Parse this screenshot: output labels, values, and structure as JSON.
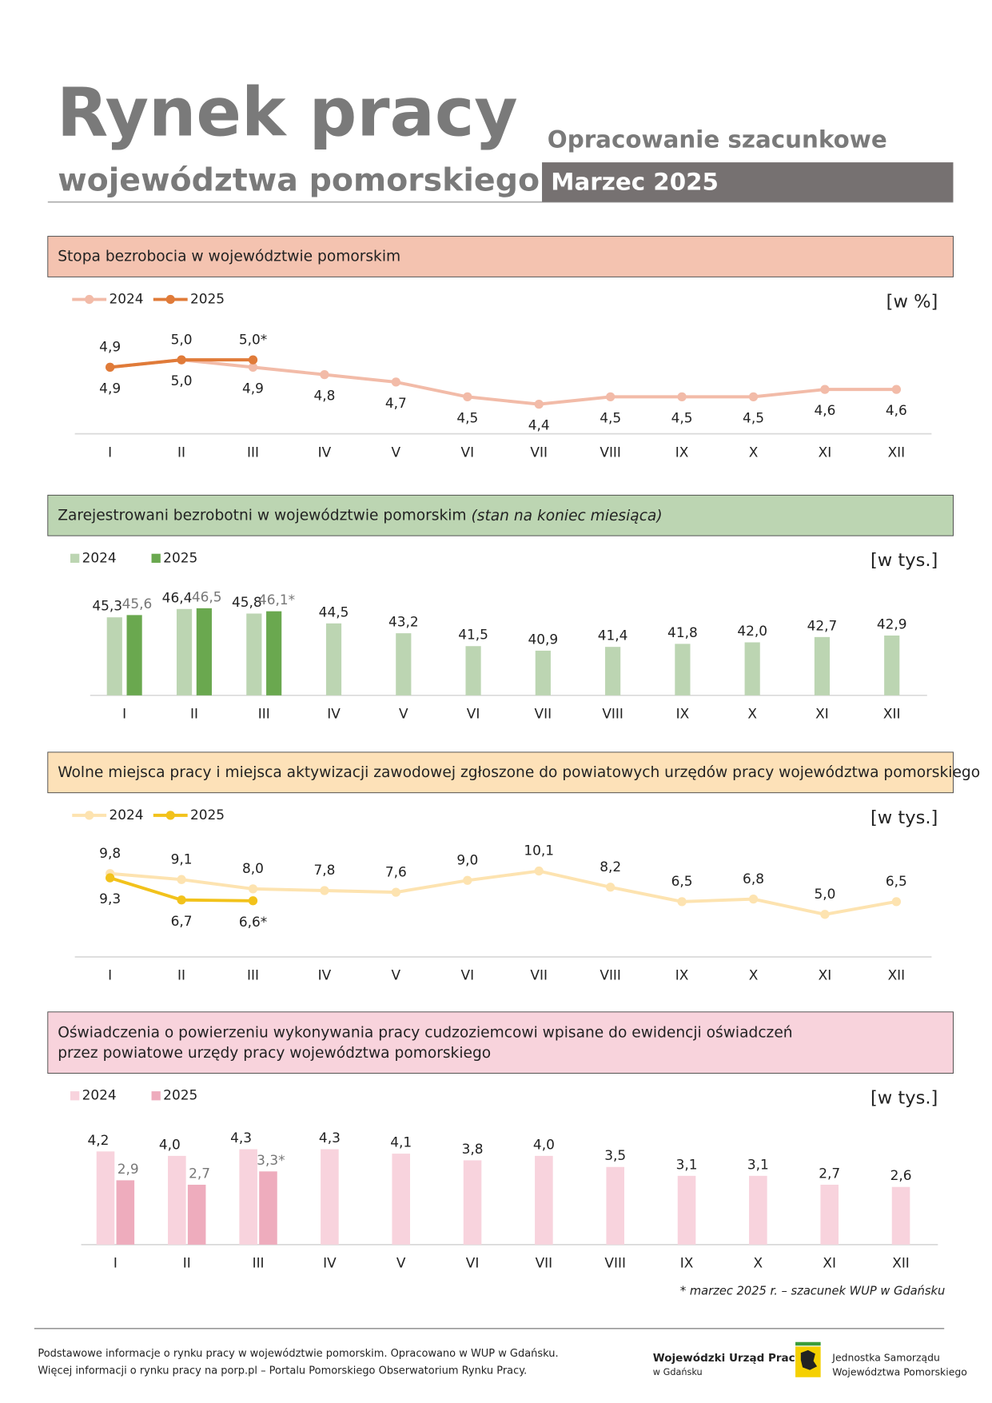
{
  "header": {
    "title": "Rynek pracy",
    "subtitle": "województwa pomorskiego",
    "note": "Opracowanie szacunkowe",
    "period": "Marzec 2025"
  },
  "chart_data": [
    {
      "type": "line",
      "title": "Stopa bezrobocia w województwie pomorskim",
      "unit": "[w %]",
      "categories": [
        "I",
        "II",
        "III",
        "IV",
        "V",
        "VI",
        "VII",
        "VIII",
        "IX",
        "X",
        "XI",
        "XII"
      ],
      "series": [
        {
          "name": "2024",
          "color": "#f2bba8",
          "values": [
            4.9,
            5.0,
            4.9,
            4.8,
            4.7,
            4.5,
            4.4,
            4.5,
            4.5,
            4.5,
            4.6,
            4.6
          ],
          "value_labels": [
            "4,9",
            "5,0",
            "4,9",
            "4,8",
            "4,7",
            "4,5",
            "4,4",
            "4,5",
            "4,5",
            "4,5",
            "4,6",
            "4,6"
          ]
        },
        {
          "name": "2025",
          "color": "#e07b39",
          "values": [
            4.9,
            5.0,
            5.0,
            null,
            null,
            null,
            null,
            null,
            null,
            null,
            null,
            null
          ],
          "value_labels": [
            "4,9",
            "5,0",
            "5,0*",
            null,
            null,
            null,
            null,
            null,
            null,
            null,
            null,
            null
          ]
        }
      ],
      "ylim": [
        4,
        5.5
      ]
    },
    {
      "type": "bar",
      "title": "Zarejestrowani bezrobotni w województwie pomorskim",
      "title_note": "(stan na koniec miesiąca)",
      "unit": "[w tys.]",
      "categories": [
        "I",
        "II",
        "III",
        "IV",
        "V",
        "VI",
        "VII",
        "VIII",
        "IX",
        "X",
        "XI",
        "XII"
      ],
      "series": [
        {
          "name": "2024",
          "color": "#bcd5b2",
          "values": [
            45.3,
            46.4,
            45.8,
            44.5,
            43.2,
            41.5,
            40.9,
            41.4,
            41.8,
            42.0,
            42.7,
            42.9
          ],
          "value_labels": [
            "45,3",
            "46,4",
            "45,8",
            "44,5",
            "43,2",
            "41,5",
            "40,9",
            "41,4",
            "41,8",
            "42,0",
            "42,7",
            "42,9"
          ]
        },
        {
          "name": "2025",
          "color": "#6aa84f",
          "values": [
            45.6,
            46.5,
            46.1,
            null,
            null,
            null,
            null,
            null,
            null,
            null,
            null,
            null
          ],
          "value_labels": [
            "45,6",
            "46,5",
            "46,1*",
            null,
            null,
            null,
            null,
            null,
            null,
            null,
            null,
            null
          ]
        }
      ],
      "ylim": [
        35,
        50
      ]
    },
    {
      "type": "line",
      "title": "Wolne miejsca pracy i miejsca aktywizacji zawodowej zgłoszone do powiatowych urzędów pracy województwa pomorskiego",
      "unit": "[w tys.]",
      "categories": [
        "I",
        "II",
        "III",
        "IV",
        "V",
        "VI",
        "VII",
        "VIII",
        "IX",
        "X",
        "XI",
        "XII"
      ],
      "series": [
        {
          "name": "2024",
          "color": "#fde3b0",
          "values": [
            9.8,
            9.1,
            8.0,
            7.8,
            7.6,
            9.0,
            10.1,
            8.2,
            6.5,
            6.8,
            5.0,
            6.5
          ],
          "value_labels": [
            "9,8",
            "9,1",
            "8,0",
            "7,8",
            "7,6",
            "9,0",
            "10,1",
            "8,2",
            "6,5",
            "6,8",
            "5,0",
            "6,5"
          ]
        },
        {
          "name": "2025",
          "color": "#f2c21b",
          "values": [
            9.3,
            6.7,
            6.6,
            null,
            null,
            null,
            null,
            null,
            null,
            null,
            null,
            null
          ],
          "value_labels": [
            "9,3",
            "6,7",
            "6,6*",
            null,
            null,
            null,
            null,
            null,
            null,
            null,
            null,
            null
          ]
        }
      ],
      "ylim": [
        0,
        14
      ]
    },
    {
      "type": "bar",
      "title": [
        "Oświadczenia o powierzeniu wykonywania pracy cudzoziemcowi wpisane do ewidencji oświadczeń",
        "przez powiatowe urzędy pracy województwa pomorskiego"
      ],
      "unit": "[w tys.]",
      "categories": [
        "I",
        "II",
        "III",
        "IV",
        "V",
        "VI",
        "VII",
        "VIII",
        "IX",
        "X",
        "XI",
        "XII"
      ],
      "series": [
        {
          "name": "2024",
          "color": "#f8d3dd",
          "values": [
            4.2,
            4.0,
            4.3,
            4.3,
            4.1,
            3.8,
            4.0,
            3.5,
            3.1,
            3.1,
            2.7,
            2.6
          ],
          "value_labels": [
            "4,2",
            "4,0",
            "4,3",
            "4,3",
            "4,1",
            "3,8",
            "4,0",
            "3,5",
            "3,1",
            "3,1",
            "2,7",
            "2,6"
          ]
        },
        {
          "name": "2025",
          "color": "#eeacbd",
          "values": [
            2.9,
            2.7,
            3.3,
            null,
            null,
            null,
            null,
            null,
            null,
            null,
            null,
            null
          ],
          "value_labels": [
            "2,9",
            "2,7",
            "3,3*",
            null,
            null,
            null,
            null,
            null,
            null,
            null,
            null,
            null
          ]
        }
      ],
      "ylim": [
        0,
        5
      ]
    }
  ],
  "footnote": "* marzec 2025 r. – szacunek WUP w Gdańsku",
  "footer": {
    "lines": [
      "Podstawowe informacje o rynku pracy w województwie pomorskim. Opracowano w WUP w Gdańsku.",
      "Więcej informacji o rynku pracy na porp.pl – Portalu Pomorskiego Obserwatorium Rynku Pracy."
    ],
    "logo_wup": [
      "Wojewódzki Urząd Pracy",
      "w Gdańsku"
    ],
    "logo_region": [
      "Jednostka Samorządu",
      "Województwa Pomorskiego"
    ]
  }
}
